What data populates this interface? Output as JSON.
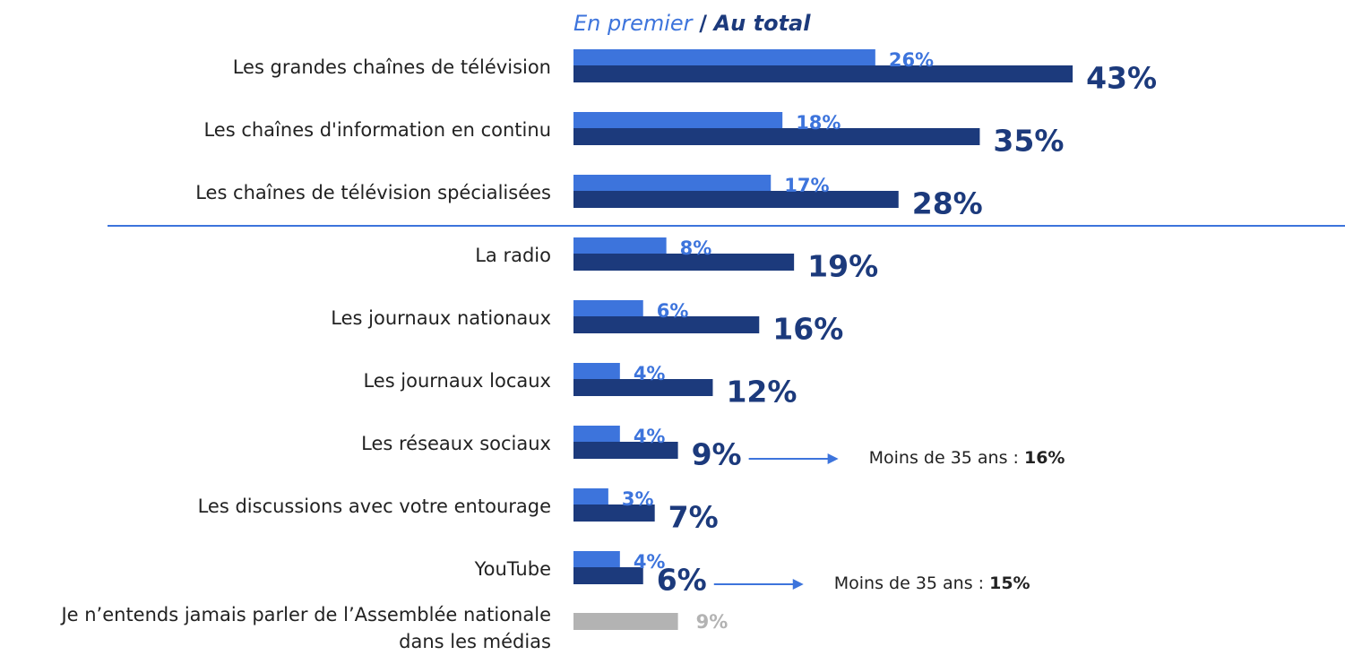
{
  "chart_data": {
    "type": "bar",
    "orientation": "horizontal",
    "legend_separator": "/",
    "categories": [
      "Les grandes chaînes de télévision",
      "Les chaînes d'information en continu",
      "Les chaînes de télévision spécialisées",
      "La radio",
      "Les journaux nationaux",
      "Les journaux locaux",
      "Les réseaux sociaux",
      "Les discussions avec votre entourage",
      "YouTube",
      "Je n’entends jamais parler de l’Assemblée nationale dans les médias"
    ],
    "series": [
      {
        "name": "En premier",
        "color": "#3d74dc",
        "values": [
          26,
          18,
          17,
          8,
          6,
          4,
          4,
          3,
          4,
          null
        ],
        "value_labels": [
          "26%",
          "18%",
          "17%",
          "8%",
          "6%",
          "4%",
          "4%",
          "3%",
          "4%",
          null
        ]
      },
      {
        "name": "Au total",
        "color": "#1c3a7c",
        "colors": [
          null,
          null,
          null,
          null,
          null,
          null,
          null,
          null,
          null,
          "#b3b3b3"
        ],
        "values": [
          43,
          35,
          28,
          19,
          16,
          12,
          9,
          7,
          6,
          9
        ],
        "value_labels": [
          "43%",
          "35%",
          "28%",
          "19%",
          "16%",
          "12%",
          "9%",
          "7%",
          "6%",
          "9%"
        ]
      }
    ],
    "xlim": [
      0,
      100
    ],
    "divider_after": 2,
    "annotations": [
      {
        "category": 6,
        "label": "Moins de 35 ans :",
        "value": 16,
        "value_label": "16%"
      },
      {
        "category": 8,
        "label": "Moins de 35 ans :",
        "value": 15,
        "value_label": "15%"
      }
    ]
  }
}
